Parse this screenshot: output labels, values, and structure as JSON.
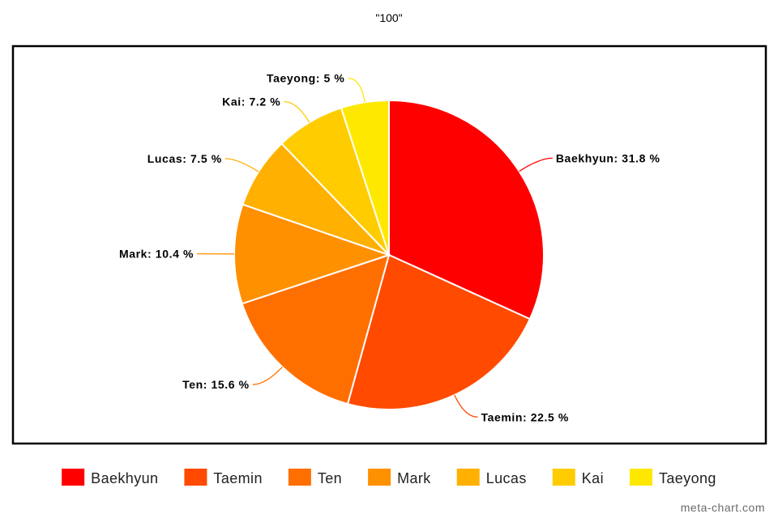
{
  "chart_data": {
    "type": "pie",
    "title": "\"100\"",
    "slices": [
      {
        "label": "Baekhyun",
        "value": 31.8,
        "color": "#ff0000"
      },
      {
        "label": "Taemin",
        "value": 22.5,
        "color": "#ff4a00"
      },
      {
        "label": "Ten",
        "value": 15.6,
        "color": "#ff6f00"
      },
      {
        "label": "Mark",
        "value": 10.4,
        "color": "#ff9000"
      },
      {
        "label": "Lucas",
        "value": 7.5,
        "color": "#ffb000"
      },
      {
        "label": "Kai",
        "value": 7.2,
        "color": "#ffcc00"
      },
      {
        "label": "Taeyong",
        "value": 5,
        "color": "#ffe800"
      }
    ],
    "value_suffix": " %",
    "legend_position": "bottom"
  },
  "footer": {
    "credit": "meta-chart.com"
  }
}
